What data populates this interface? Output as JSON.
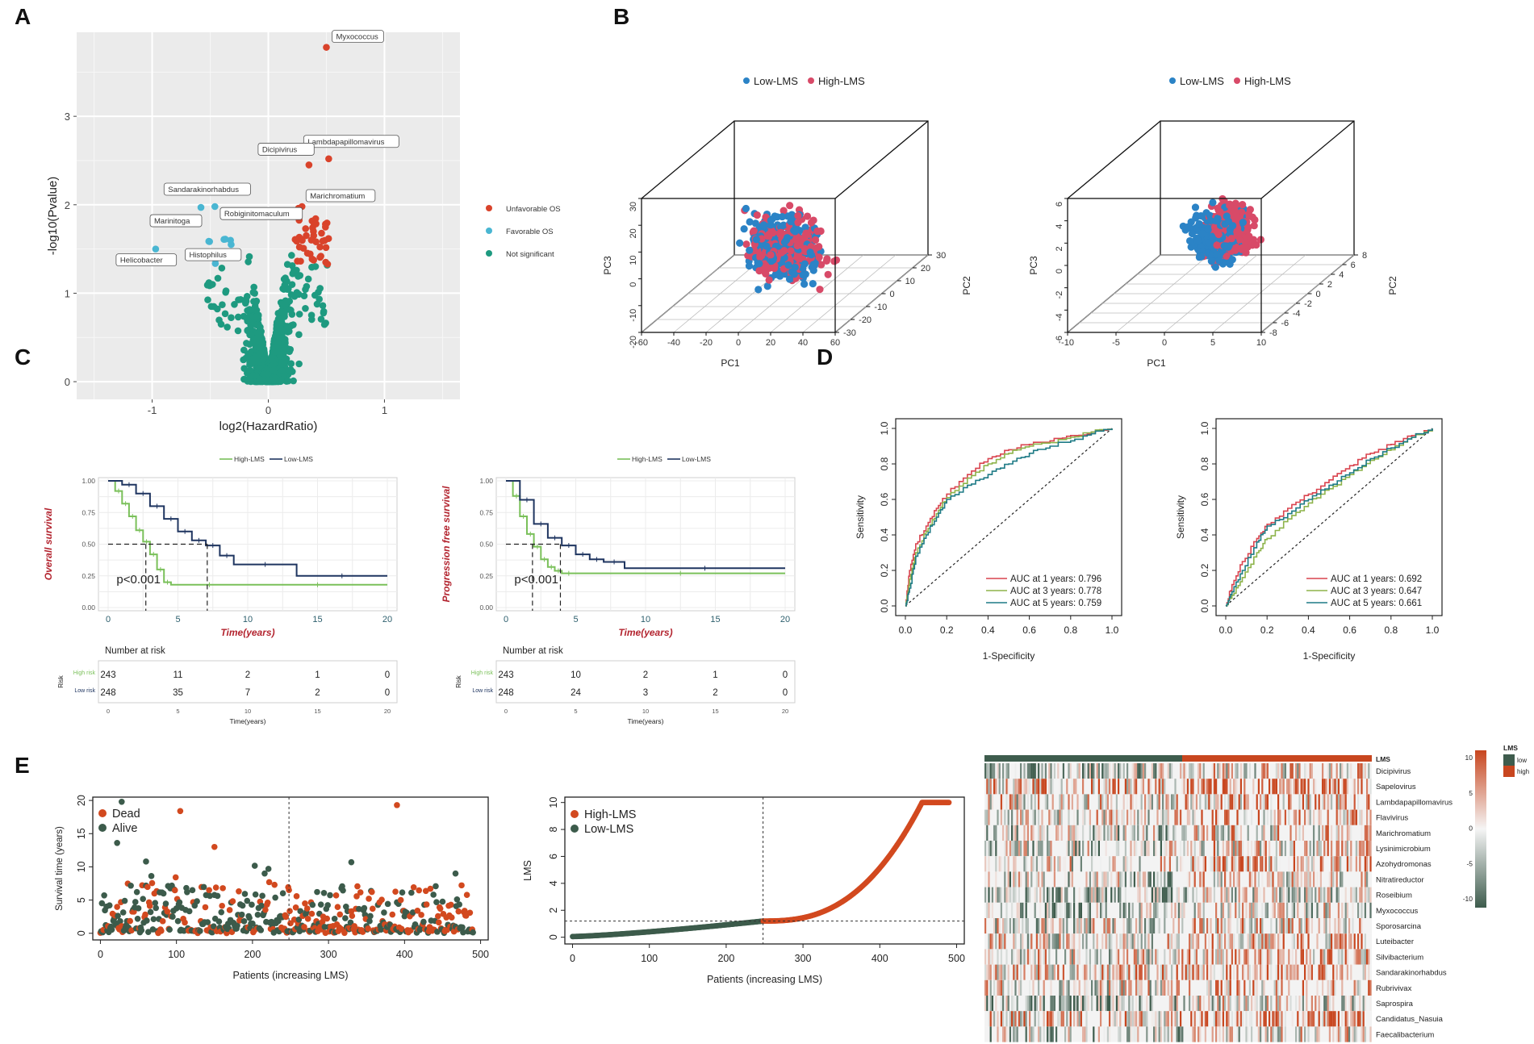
{
  "panel_labels": [
    "A",
    "B",
    "C",
    "D",
    "E"
  ],
  "colors": {
    "unfavorable": "#d9432b",
    "favorable": "#49b6d2",
    "not_significant": "#1e9a80",
    "low_lms": "#2b83c6",
    "high_lms": "#d84a68",
    "km_high": "#7ac05a",
    "km_low": "#1f3560",
    "roc_1y": "#d9434e",
    "roc_3y": "#8db34a",
    "roc_5y": "#1d7a85",
    "dead": "#d2491f",
    "alive": "#3c5b4b",
    "heat_high": "#c8461f",
    "heat_low": "#3e5c4d"
  },
  "chart_data": [
    {
      "id": "A",
      "type": "scatter",
      "subtype": "volcano",
      "xlabel": "log2(HazardRatio)",
      "ylabel": "-log10(Pvalue)",
      "xlim": [
        -1.65,
        1.65
      ],
      "ylim": [
        -0.2,
        3.95
      ],
      "xticks": [
        -1,
        0,
        1
      ],
      "yticks": [
        0,
        1,
        2,
        3
      ],
      "grid": true,
      "legend_position": "right",
      "legend": [
        "Unfavorable OS",
        "Favorable OS",
        "Not significant"
      ],
      "labeled_points": [
        {
          "label": "Myxococcus",
          "x": 0.5,
          "y": 3.78,
          "group": "Unfavorable OS"
        },
        {
          "label": "Lambdapapillomavirus",
          "x": 0.52,
          "y": 2.52,
          "group": "Unfavorable OS"
        },
        {
          "label": "Dicipivirus",
          "x": 0.35,
          "y": 2.45,
          "group": "Unfavorable OS"
        },
        {
          "label": "Marichromatium",
          "x": 0.29,
          "y": 1.98,
          "group": "Unfavorable OS"
        },
        {
          "label": "Robiginitomaculum",
          "x": 0.26,
          "y": 1.96,
          "group": "Unfavorable OS"
        },
        {
          "label": "Sandarakinorhabdus",
          "x": -0.46,
          "y": 1.98,
          "group": "Favorable OS"
        },
        {
          "label": "Marinitoga",
          "x": -0.58,
          "y": 1.97,
          "group": "Favorable OS"
        },
        {
          "label": "Histophilus",
          "x": -0.32,
          "y": 1.55,
          "group": "Favorable OS"
        },
        {
          "label": "Helicobacter",
          "x": -0.97,
          "y": 1.5,
          "group": "Favorable OS"
        }
      ]
    },
    {
      "id": "B1",
      "type": "scatter",
      "subtype": "3d",
      "xlabel": "PC1",
      "ylabel": "PC2",
      "zlabel": "PC3",
      "xticks": [
        -60,
        -40,
        -20,
        0,
        20,
        40,
        60
      ],
      "yticks": [
        -30,
        -20,
        -10,
        0,
        10,
        20,
        30
      ],
      "zticks": [
        -20,
        -10,
        0,
        10,
        20,
        30
      ],
      "xlim": [
        -60,
        60
      ],
      "ylim": [
        -30,
        30
      ],
      "zlim": [
        -20,
        30
      ],
      "legend": [
        "Low-LMS",
        "High-LMS"
      ],
      "legend_position": "top"
    },
    {
      "id": "B2",
      "type": "scatter",
      "subtype": "3d",
      "xlabel": "PC1",
      "ylabel": "PC2",
      "zlabel": "PC3",
      "xticks": [
        -10,
        -5,
        0,
        5,
        10
      ],
      "yticks": [
        -8,
        -6,
        -4,
        -2,
        0,
        2,
        4,
        6,
        8
      ],
      "zticks": [
        -6,
        -4,
        -2,
        0,
        2,
        4,
        6
      ],
      "xlim": [
        -10,
        10
      ],
      "ylim": [
        -8,
        8
      ],
      "zlim": [
        -6,
        6
      ],
      "legend": [
        "Low-LMS",
        "High-LMS"
      ],
      "legend_position": "top"
    },
    {
      "id": "C1",
      "type": "line",
      "subtype": "kaplan-meier",
      "ylabel": "Overall survival",
      "xlabel": "Time(years)",
      "xlim": [
        0,
        20
      ],
      "ylim": [
        0,
        1
      ],
      "xticks": [
        0,
        5,
        10,
        15,
        20
      ],
      "yticks": [
        "0.00",
        "0.25",
        "0.50",
        "0.75",
        "1.00"
      ],
      "legend": [
        "High-LMS",
        "Low-LMS"
      ],
      "pvalue": "p<0.001",
      "median_high": 2.7,
      "median_low": 7.1,
      "series": [
        {
          "name": "High-LMS",
          "x": [
            0,
            0.5,
            1,
            1.5,
            2,
            2.5,
            3,
            3.5,
            4,
            4.5,
            10,
            20
          ],
          "values": [
            1,
            0.92,
            0.82,
            0.72,
            0.61,
            0.52,
            0.42,
            0.3,
            0.2,
            0.18,
            0.18,
            0.18
          ]
        },
        {
          "name": "Low-LMS",
          "x": [
            0,
            1,
            2,
            3,
            4,
            5,
            6,
            7,
            8,
            9,
            13.5,
            20
          ],
          "values": [
            1,
            0.97,
            0.9,
            0.8,
            0.7,
            0.6,
            0.53,
            0.49,
            0.41,
            0.34,
            0.25,
            0.25
          ]
        }
      ],
      "risk_table": {
        "title": "Number at risk",
        "row_axis": "Risk",
        "rows": [
          {
            "label": "High risk",
            "values": [
              243,
              11,
              2,
              1,
              0
            ]
          },
          {
            "label": "Low risk",
            "values": [
              248,
              35,
              7,
              2,
              0
            ]
          }
        ],
        "xticks": [
          0,
          5,
          10,
          15,
          20
        ],
        "xlabel": "Time(years)"
      }
    },
    {
      "id": "C2",
      "type": "line",
      "subtype": "kaplan-meier",
      "ylabel": "Progression free survival",
      "xlabel": "Time(years)",
      "xlim": [
        0,
        20
      ],
      "ylim": [
        0,
        1
      ],
      "xticks": [
        0,
        5,
        10,
        15,
        20
      ],
      "yticks": [
        "0.00",
        "0.25",
        "0.50",
        "0.75",
        "1.00"
      ],
      "legend": [
        "High-LMS",
        "Low-LMS"
      ],
      "pvalue": "p<0.001",
      "median_high": 1.9,
      "median_low": 3.9,
      "series": [
        {
          "name": "High-LMS",
          "x": [
            0,
            0.5,
            1,
            1.5,
            2,
            2.5,
            3,
            3.5,
            4,
            5,
            20
          ],
          "values": [
            1,
            0.88,
            0.72,
            0.58,
            0.48,
            0.38,
            0.32,
            0.29,
            0.27,
            0.27,
            0.27
          ]
        },
        {
          "name": "Low-LMS",
          "x": [
            0,
            1,
            2,
            3,
            4,
            5,
            6,
            7,
            8.5,
            20
          ],
          "values": [
            1,
            0.85,
            0.66,
            0.55,
            0.49,
            0.42,
            0.38,
            0.36,
            0.31,
            0.31
          ]
        }
      ],
      "risk_table": {
        "title": "Number at risk",
        "row_axis": "Risk",
        "rows": [
          {
            "label": "High risk",
            "values": [
              243,
              10,
              2,
              1,
              0
            ]
          },
          {
            "label": "Low risk",
            "values": [
              248,
              24,
              3,
              2,
              0
            ]
          }
        ],
        "xticks": [
          0,
          5,
          10,
          15,
          20
        ],
        "xlabel": "Time(years)"
      }
    },
    {
      "id": "D1",
      "type": "line",
      "subtype": "roc",
      "xlabel": "1-Specificity",
      "ylabel": "Sensitivity",
      "xlim": [
        0,
        1
      ],
      "ylim": [
        0,
        1
      ],
      "xticks": [
        "0.0",
        "0.2",
        "0.4",
        "0.6",
        "0.8",
        "1.0"
      ],
      "yticks": [
        "0.0",
        "0.2",
        "0.4",
        "0.6",
        "0.8",
        "1.0"
      ],
      "legend": [
        "AUC at 1 years: 0.796",
        "AUC at 3 years: 0.778",
        "AUC at 5 years: 0.759"
      ],
      "legend_position": "bottom-right",
      "series": [
        {
          "name": "AUC at 1 years: 0.796",
          "x": [
            0,
            0.02,
            0.05,
            0.1,
            0.15,
            0.2,
            0.3,
            0.4,
            0.5,
            0.6,
            0.7,
            0.8,
            0.9,
            1
          ],
          "values": [
            0,
            0.2,
            0.35,
            0.45,
            0.55,
            0.63,
            0.74,
            0.83,
            0.88,
            0.91,
            0.93,
            0.96,
            0.98,
            1
          ]
        },
        {
          "name": "AUC at 3 years: 0.778",
          "x": [
            0,
            0.02,
            0.05,
            0.1,
            0.15,
            0.2,
            0.3,
            0.4,
            0.5,
            0.6,
            0.7,
            0.8,
            0.9,
            1
          ],
          "values": [
            0,
            0.15,
            0.3,
            0.42,
            0.52,
            0.61,
            0.72,
            0.8,
            0.86,
            0.9,
            0.92,
            0.95,
            0.98,
            1
          ]
        },
        {
          "name": "AUC at 5 years: 0.759",
          "x": [
            0,
            0.02,
            0.05,
            0.1,
            0.15,
            0.2,
            0.3,
            0.4,
            0.5,
            0.6,
            0.7,
            0.8,
            0.9,
            1
          ],
          "values": [
            0,
            0.1,
            0.28,
            0.4,
            0.5,
            0.6,
            0.68,
            0.74,
            0.8,
            0.86,
            0.9,
            0.93,
            0.97,
            1
          ]
        }
      ]
    },
    {
      "id": "D2",
      "type": "line",
      "subtype": "roc",
      "xlabel": "1-Specificity",
      "ylabel": "Sensitivity",
      "xlim": [
        0,
        1
      ],
      "ylim": [
        0,
        1
      ],
      "xticks": [
        "0.0",
        "0.2",
        "0.4",
        "0.6",
        "0.8",
        "1.0"
      ],
      "yticks": [
        "0.0",
        "0.2",
        "0.4",
        "0.6",
        "0.8",
        "1.0"
      ],
      "legend": [
        "AUC at 1 years: 0.692",
        "AUC at 3 years: 0.647",
        "AUC at 5 years: 0.661"
      ],
      "legend_position": "bottom-right",
      "series": [
        {
          "name": "AUC at 1 years: 0.692",
          "x": [
            0,
            0.03,
            0.08,
            0.15,
            0.2,
            0.3,
            0.4,
            0.5,
            0.6,
            0.7,
            0.8,
            0.9,
            1
          ],
          "values": [
            0,
            0.12,
            0.25,
            0.38,
            0.46,
            0.55,
            0.63,
            0.71,
            0.79,
            0.86,
            0.91,
            0.96,
            1
          ]
        },
        {
          "name": "AUC at 3 years: 0.647",
          "x": [
            0,
            0.03,
            0.08,
            0.15,
            0.2,
            0.3,
            0.4,
            0.5,
            0.6,
            0.7,
            0.8,
            0.9,
            1
          ],
          "values": [
            0,
            0.06,
            0.16,
            0.3,
            0.38,
            0.49,
            0.58,
            0.66,
            0.74,
            0.82,
            0.88,
            0.95,
            1
          ]
        },
        {
          "name": "AUC at 5 years: 0.661",
          "x": [
            0,
            0.03,
            0.08,
            0.15,
            0.2,
            0.3,
            0.4,
            0.5,
            0.6,
            0.7,
            0.8,
            0.9,
            1
          ],
          "values": [
            0,
            0.08,
            0.2,
            0.36,
            0.45,
            0.52,
            0.6,
            0.68,
            0.75,
            0.83,
            0.89,
            0.95,
            1
          ]
        }
      ]
    },
    {
      "id": "E1",
      "type": "scatter",
      "xlabel": "Patients (increasing LMS)",
      "ylabel": "Survival time (years)",
      "xlim": [
        -10,
        510
      ],
      "ylim": [
        -1,
        20.5
      ],
      "xticks": [
        0,
        100,
        200,
        300,
        400,
        500
      ],
      "yticks": [
        0,
        5,
        10,
        15,
        20
      ],
      "cutoff_x": 248,
      "legend": [
        "Dead",
        "Alive"
      ],
      "legend_position": "top-left"
    },
    {
      "id": "E2",
      "type": "scatter",
      "xlabel": "Patients (increasing LMS)",
      "ylabel": "LMS",
      "xlim": [
        -10,
        510
      ],
      "ylim": [
        -0.5,
        10.4
      ],
      "xticks": [
        0,
        100,
        200,
        300,
        400,
        500
      ],
      "yticks": [
        0,
        2,
        4,
        6,
        8,
        10
      ],
      "cutoff_x": 248,
      "cutoff_y": 1.2,
      "legend": [
        "High-LMS",
        "Low-LMS"
      ],
      "legend_position": "top-left"
    },
    {
      "id": "E3",
      "type": "heatmap",
      "annotation_label": "LMS",
      "legend_title": "LMS",
      "legend_groups": [
        "low",
        "high"
      ],
      "colorbar_ticks": [
        10,
        5,
        0,
        -5,
        -10
      ],
      "rows": [
        "Dicipivirus",
        "Sapelovirus",
        "Lambdapapillomavirus",
        "Flavivirus",
        "Marichromatium",
        "Lysinimicrobium",
        "Azohydromonas",
        "Nitratireductor",
        "Roseibium",
        "Myxococcus",
        "Sporosarcina",
        "Luteibacter",
        "Silvibacterium",
        "Sandarakinorhabdus",
        "Rubrivivax",
        "Saprospira",
        "Candidatus_Nasuia",
        "Faecalibacterium"
      ]
    }
  ]
}
